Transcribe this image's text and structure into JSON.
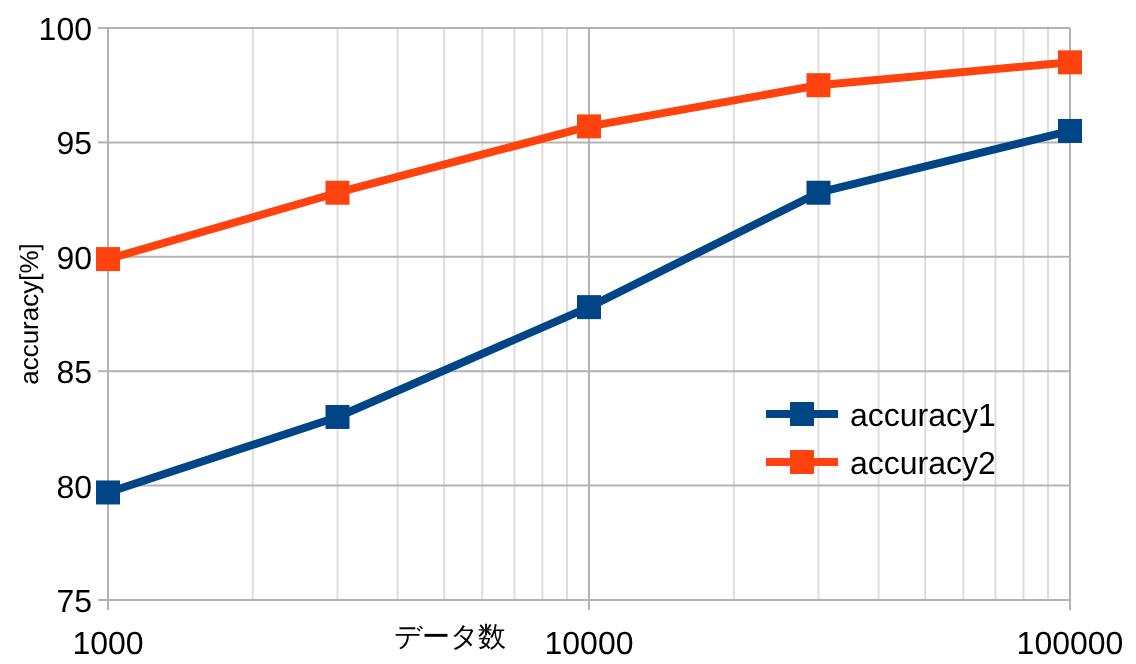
{
  "chart_data": {
    "type": "line",
    "xlabel": "データ数",
    "ylabel": "accuracy[%]",
    "log": "x",
    "x": [
      1000,
      3000,
      10000,
      30000,
      100000
    ],
    "series": [
      {
        "name": "accuracy1",
        "color": "#004586",
        "values": [
          79.7,
          83.0,
          87.8,
          92.8,
          95.5
        ]
      },
      {
        "name": "accuracy2",
        "color": "#ff420e",
        "values": [
          89.9,
          92.8,
          95.7,
          97.5,
          98.5
        ]
      }
    ],
    "xlim": [
      1000,
      100000
    ],
    "xticks": [
      1000,
      {
        "value": 2000,
        "label": null
      },
      {
        "value": 3000,
        "label": null
      },
      {
        "value": 4000,
        "label": null
      },
      {
        "value": 5000,
        "label": null
      },
      {
        "value": 6000,
        "label": null
      },
      {
        "value": 7000,
        "label": null
      },
      {
        "value": 8000,
        "label": null
      },
      {
        "value": 9000,
        "label": null
      },
      10000,
      {
        "value": 20000,
        "label": null
      },
      {
        "value": 30000,
        "label": null
      },
      {
        "value": 40000,
        "label": null
      },
      {
        "value": 50000,
        "label": null
      },
      {
        "value": 60000,
        "label": null
      },
      {
        "value": 70000,
        "label": null
      },
      {
        "value": 80000,
        "label": null
      },
      {
        "value": 90000,
        "label": null
      },
      100000
    ],
    "ylim": [
      75,
      100
    ],
    "yticks": [
      75,
      80,
      85,
      90,
      95,
      100
    ],
    "grid": true,
    "legend": "right",
    "marker": "square",
    "line_style": "solid"
  }
}
